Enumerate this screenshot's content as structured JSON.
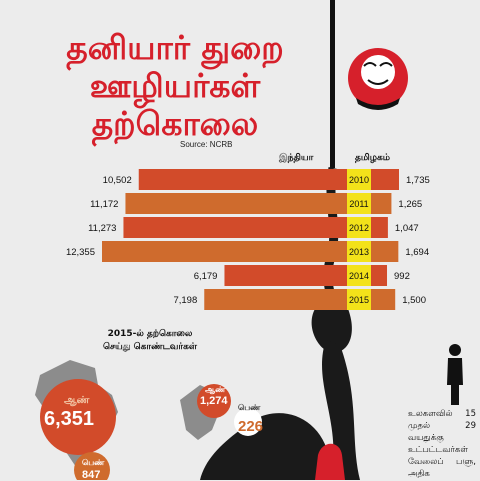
{
  "title": {
    "line1": "தனியார் துறை",
    "line2": "ஊழியர்கள்",
    "line3": "தற்கொலை"
  },
  "source": "Source: NCRB",
  "colors": {
    "red": "#d6202b",
    "india_bar": "#d24b2a",
    "tn_bar": "#cf6b2d",
    "year_box": "#f3e21a",
    "rope": "#1a1a1a",
    "background": "#ececec"
  },
  "chart_data": {
    "type": "bar",
    "orientation": "horizontal-back-to-back",
    "categories": [
      "2010",
      "2011",
      "2012",
      "2013",
      "2014",
      "2015"
    ],
    "series": [
      {
        "name": "இந்தியா",
        "values": [
          10502,
          11172,
          11273,
          12355,
          6179,
          7198
        ]
      },
      {
        "name": "தமிழகம்",
        "values": [
          1735,
          1265,
          1047,
          1694,
          992,
          1500
        ]
      }
    ],
    "labels_india": [
      "10,502",
      "11,172",
      "11,273",
      "12,355",
      "6,179",
      "7,198"
    ],
    "labels_tn": [
      "1,735",
      "1,265",
      "1,047",
      "1,694",
      "992",
      "1,500"
    ]
  },
  "breakdown": {
    "subtitle_line1": "2015-ல் தற்கொலை",
    "subtitle_line2": "செய்து கொண்டவர்கள்",
    "india": {
      "male_label": "ஆண்",
      "male_value": "6,351",
      "female_label": "பெண்",
      "female_value": "847"
    },
    "tamilnadu": {
      "male_label": "ஆண்",
      "male_value": "1,274",
      "female_label": "பெண்",
      "female_value": "226"
    }
  },
  "side_note": "உலகளவில் 15 முதல் 29 வயதுக்கு உட்பட்டவர்கள் வேலைப் பளு, அதிக",
  "logo": {
    "icon": "face-logo-icon"
  }
}
